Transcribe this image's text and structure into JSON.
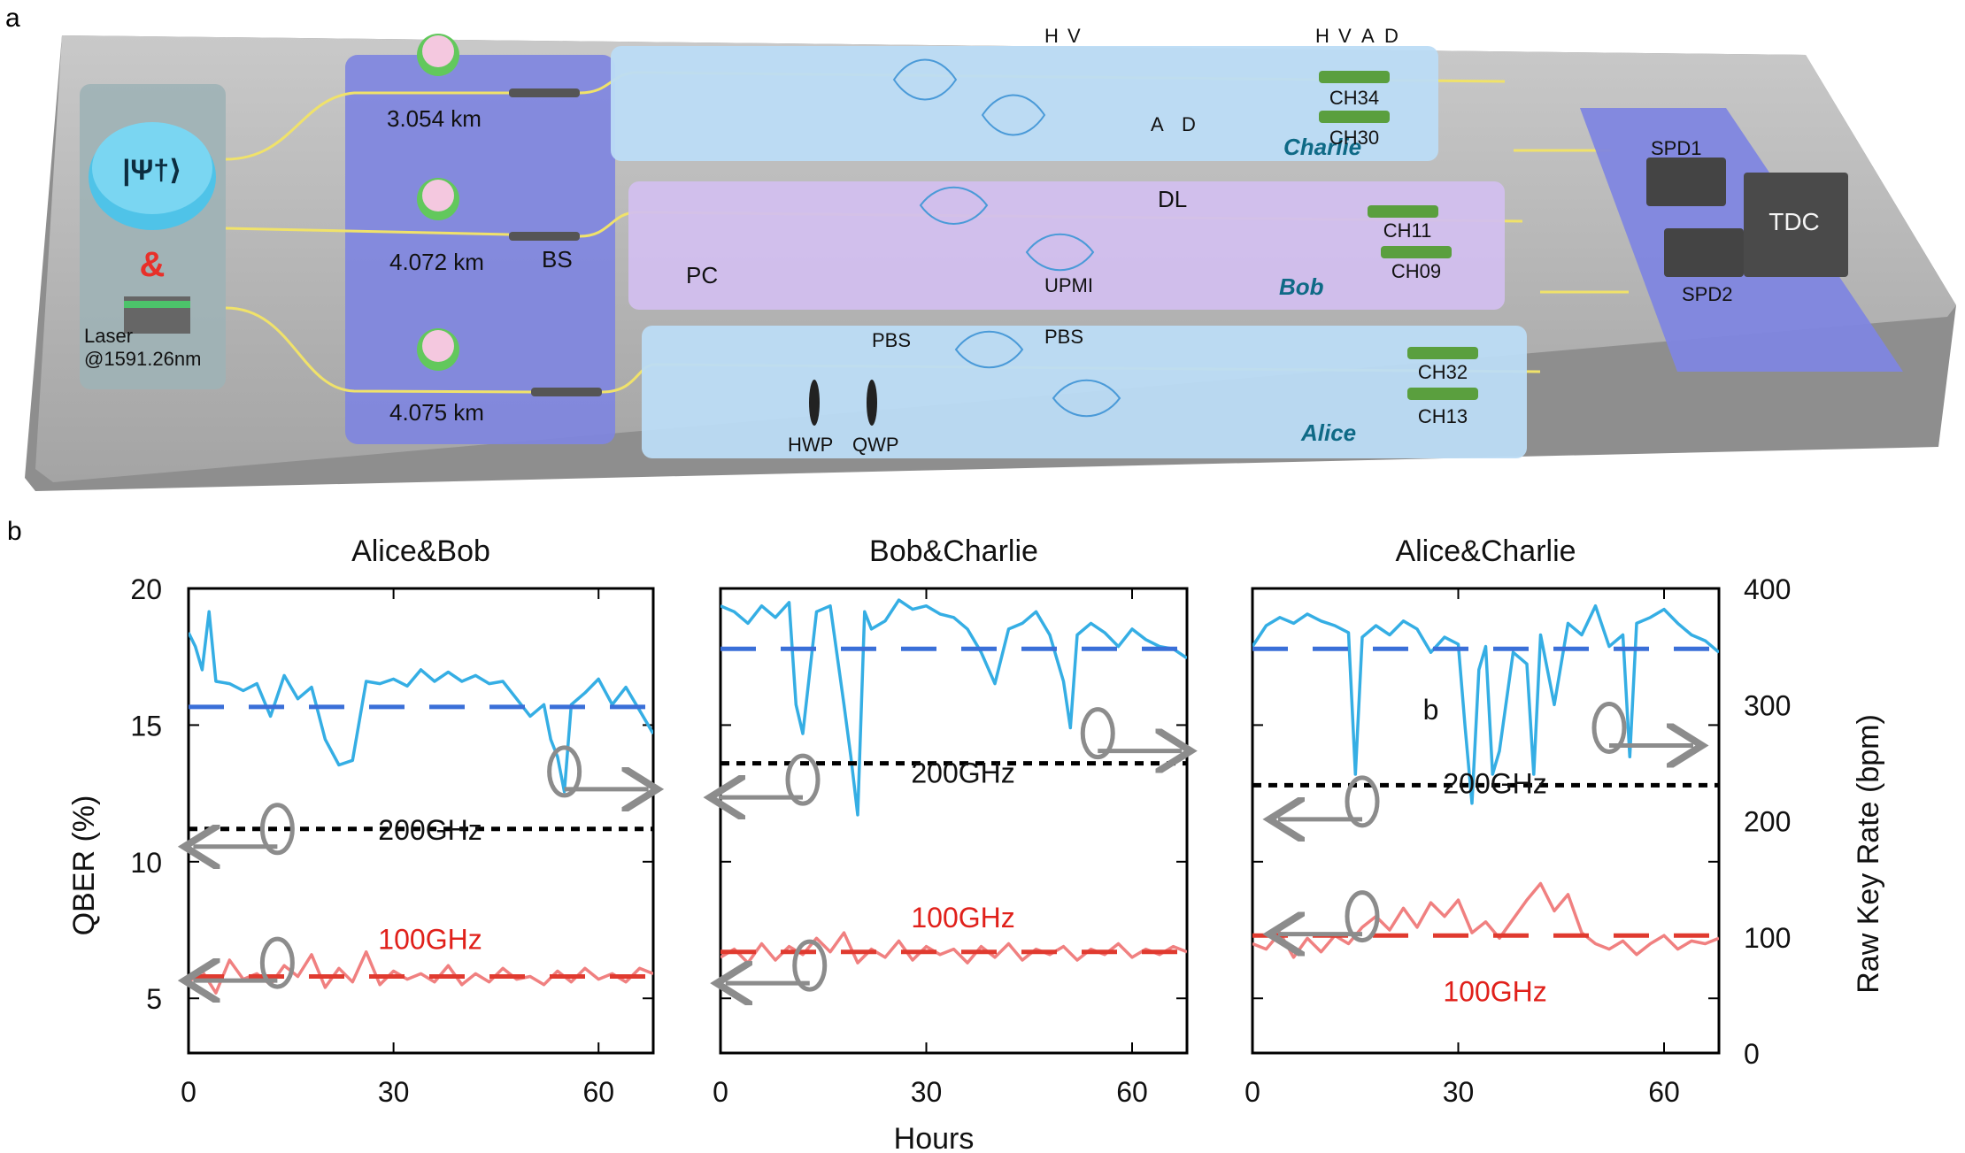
{
  "panel_a": {
    "label": "a",
    "source_state": "|Ψ†⟩",
    "ampersand": "&",
    "laser_label": "Laser",
    "laser_wavelength": "@1591.26nm",
    "fiber_lengths": [
      "3.054 km",
      "4.072 km",
      "4.075 km"
    ],
    "bs_label": "BS",
    "charlie": {
      "name": "Charlie",
      "ch_top": "CH34",
      "ch_bottom": "CH30",
      "pulse_hv": [
        "H",
        "V"
      ],
      "pulse_ad": [
        "A",
        "D"
      ],
      "pulse_all": [
        "H",
        "V",
        "A",
        "D"
      ]
    },
    "bob": {
      "name": "Bob",
      "ch_top": "CH11",
      "ch_bottom": "CH09",
      "dl": "DL",
      "pc": "PC",
      "upmi": "UPMI"
    },
    "alice": {
      "name": "Alice",
      "ch_top": "CH32",
      "ch_bottom": "CH13",
      "pbs_left": "PBS",
      "pbs_right": "PBS",
      "hwp": "HWP",
      "qwp": "QWP"
    },
    "detection": {
      "spd1": "SPD1",
      "spd2": "SPD2",
      "tdc": "TDC"
    }
  },
  "panel_b": {
    "label": "b",
    "left_axis_title": "QBER (%)",
    "right_axis_title": "Raw Key Rate (bpm)",
    "x_axis_title": "Hours",
    "x_ticks": [
      "0",
      "30",
      "60"
    ],
    "left_ticks": [
      "5",
      "10",
      "15",
      "20"
    ],
    "right_ticks": [
      "0",
      "100",
      "200",
      "300",
      "400"
    ],
    "band_200": "200GHz",
    "band_100": "100GHz",
    "stray_label": "b",
    "colors": {
      "rate_line": "#35aee4",
      "rate_avg": "#3a6fd8",
      "qber_line": "#f08080",
      "qber_avg": "#e03a2f",
      "ref_line": "#000000",
      "arrow": "#8c8c8c",
      "band_100": "#e0201a"
    }
  },
  "chart_data": [
    {
      "type": "line",
      "title": "Alice&Bob",
      "xlabel": "Hours",
      "ylabel": "QBER (%)",
      "ylabel_right": "Raw Key Rate (bpm)",
      "xlim": [
        0,
        68
      ],
      "ylim": [
        3,
        20
      ],
      "ylim_right": [
        0,
        400
      ],
      "series": [
        {
          "axis": "right",
          "role": "rate",
          "x": [
            0,
            1,
            2,
            3,
            4,
            6,
            8,
            10,
            12,
            14,
            16,
            18,
            20,
            22,
            24,
            26,
            28,
            30,
            32,
            34,
            36,
            38,
            40,
            42,
            44,
            46,
            48,
            50,
            52,
            53,
            54,
            55,
            56,
            58,
            60,
            62,
            64,
            66,
            68
          ],
          "y": [
            362,
            350,
            330,
            380,
            320,
            318,
            312,
            318,
            290,
            325,
            305,
            315,
            270,
            248,
            252,
            320,
            318,
            322,
            316,
            330,
            320,
            328,
            320,
            325,
            318,
            320,
            305,
            290,
            300,
            270,
            255,
            225,
            300,
            310,
            322,
            300,
            315,
            295,
            275
          ]
        },
        {
          "axis": "right",
          "role": "rate_average",
          "x": [
            0,
            68
          ],
          "y": [
            298,
            298
          ]
        },
        {
          "axis": "left",
          "role": "qber",
          "x": [
            0,
            2,
            4,
            6,
            8,
            10,
            12,
            14,
            16,
            18,
            20,
            22,
            24,
            26,
            28,
            30,
            32,
            34,
            36,
            38,
            40,
            42,
            44,
            46,
            48,
            50,
            52,
            54,
            56,
            58,
            60,
            62,
            64,
            66,
            68
          ],
          "y": [
            5.6,
            6.0,
            5.2,
            6.4,
            5.7,
            5.9,
            5.5,
            6.2,
            5.8,
            6.6,
            5.4,
            6.1,
            5.6,
            6.7,
            5.5,
            6.0,
            5.7,
            5.9,
            5.6,
            6.2,
            5.5,
            5.9,
            5.6,
            6.1,
            5.7,
            5.8,
            5.5,
            6.0,
            5.6,
            6.1,
            5.7,
            5.9,
            5.6,
            6.1,
            5.9
          ]
        },
        {
          "axis": "left",
          "role": "qber_average",
          "x": [
            0,
            68
          ],
          "y": [
            5.8,
            5.8
          ]
        },
        {
          "axis": "left",
          "role": "reference_200GHz",
          "x": [
            0,
            68
          ],
          "y": [
            11.2,
            11.2
          ]
        }
      ],
      "annotations": [
        "200GHz",
        "100GHz"
      ]
    },
    {
      "type": "line",
      "title": "Bob&Charlie",
      "xlabel": "Hours",
      "ylabel": "QBER (%)",
      "ylabel_right": "Raw Key Rate (bpm)",
      "xlim": [
        0,
        68
      ],
      "ylim": [
        3,
        20
      ],
      "ylim_right": [
        0,
        400
      ],
      "series": [
        {
          "axis": "right",
          "role": "rate",
          "x": [
            0,
            2,
            4,
            6,
            8,
            10,
            11,
            12,
            14,
            16,
            18,
            19,
            20,
            21,
            22,
            24,
            26,
            28,
            30,
            32,
            34,
            36,
            38,
            40,
            42,
            44,
            46,
            48,
            50,
            51,
            52,
            54,
            56,
            58,
            60,
            62,
            64,
            66,
            68
          ],
          "y": [
            385,
            380,
            370,
            385,
            375,
            388,
            300,
            275,
            380,
            385,
            300,
            255,
            205,
            380,
            365,
            372,
            390,
            382,
            385,
            378,
            375,
            365,
            345,
            318,
            365,
            370,
            380,
            360,
            320,
            280,
            360,
            370,
            362,
            350,
            365,
            356,
            350,
            348,
            340
          ]
        },
        {
          "axis": "right",
          "role": "rate_average",
          "x": [
            0,
            68
          ],
          "y": [
            348,
            348
          ]
        },
        {
          "axis": "left",
          "role": "qber",
          "x": [
            0,
            2,
            4,
            6,
            8,
            10,
            12,
            14,
            16,
            18,
            20,
            22,
            24,
            26,
            28,
            30,
            32,
            34,
            36,
            38,
            40,
            42,
            44,
            46,
            48,
            50,
            52,
            54,
            56,
            58,
            60,
            62,
            64,
            66,
            68
          ],
          "y": [
            6.5,
            6.8,
            6.3,
            7.0,
            6.4,
            6.9,
            6.6,
            7.2,
            6.7,
            7.4,
            6.3,
            6.8,
            6.5,
            7.1,
            6.4,
            6.9,
            6.6,
            6.8,
            6.3,
            6.9,
            6.5,
            7.0,
            6.4,
            6.8,
            6.6,
            6.9,
            6.4,
            6.8,
            6.6,
            7.0,
            6.5,
            6.8,
            6.6,
            6.9,
            6.7
          ]
        },
        {
          "axis": "left",
          "role": "qber_average",
          "x": [
            0,
            68
          ],
          "y": [
            6.7,
            6.7
          ]
        },
        {
          "axis": "left",
          "role": "reference_200GHz",
          "x": [
            0,
            68
          ],
          "y": [
            13.6,
            13.6
          ]
        }
      ],
      "annotations": [
        "200GHz",
        "100GHz"
      ]
    },
    {
      "type": "line",
      "title": "Alice&Charlie",
      "xlabel": "Hours",
      "ylabel": "QBER (%)",
      "ylabel_right": "Raw Key Rate (bpm)",
      "xlim": [
        0,
        68
      ],
      "ylim": [
        3,
        20
      ],
      "ylim_right": [
        0,
        400
      ],
      "series": [
        {
          "axis": "right",
          "role": "rate",
          "x": [
            0,
            2,
            4,
            6,
            8,
            10,
            12,
            14,
            15,
            16,
            18,
            20,
            22,
            24,
            26,
            28,
            30,
            31,
            32,
            33,
            34,
            35,
            36,
            38,
            40,
            41,
            42,
            44,
            46,
            48,
            50,
            52,
            54,
            55,
            56,
            58,
            60,
            62,
            64,
            66,
            68
          ],
          "y": [
            350,
            368,
            375,
            370,
            378,
            372,
            368,
            362,
            240,
            358,
            368,
            360,
            372,
            365,
            345,
            358,
            352,
            280,
            215,
            330,
            350,
            240,
            260,
            345,
            335,
            240,
            360,
            300,
            370,
            360,
            385,
            350,
            360,
            255,
            370,
            375,
            382,
            370,
            360,
            355,
            345
          ]
        },
        {
          "axis": "right",
          "role": "rate_average",
          "x": [
            0,
            68
          ],
          "y": [
            348,
            348
          ]
        },
        {
          "axis": "left",
          "role": "qber",
          "x": [
            0,
            2,
            4,
            6,
            8,
            10,
            12,
            14,
            16,
            18,
            20,
            22,
            24,
            26,
            28,
            30,
            32,
            34,
            36,
            38,
            40,
            42,
            44,
            46,
            48,
            50,
            52,
            54,
            56,
            58,
            60,
            62,
            64,
            66,
            68
          ],
          "y": [
            7.0,
            6.8,
            7.4,
            6.5,
            7.2,
            6.7,
            7.3,
            7.0,
            7.6,
            8.0,
            7.5,
            8.3,
            7.6,
            8.5,
            8.0,
            8.6,
            7.4,
            7.8,
            7.2,
            7.9,
            8.6,
            9.2,
            8.2,
            8.8,
            7.4,
            7.0,
            6.8,
            7.1,
            6.6,
            7.0,
            7.3,
            6.8,
            7.1,
            7.0,
            7.2
          ]
        },
        {
          "axis": "left",
          "role": "qber_average",
          "x": [
            0,
            68
          ],
          "y": [
            7.3,
            7.3
          ]
        },
        {
          "axis": "left",
          "role": "reference_200GHz",
          "x": [
            0,
            68
          ],
          "y": [
            12.8,
            12.8
          ]
        }
      ],
      "annotations": [
        "200GHz",
        "100GHz",
        "b"
      ]
    }
  ]
}
